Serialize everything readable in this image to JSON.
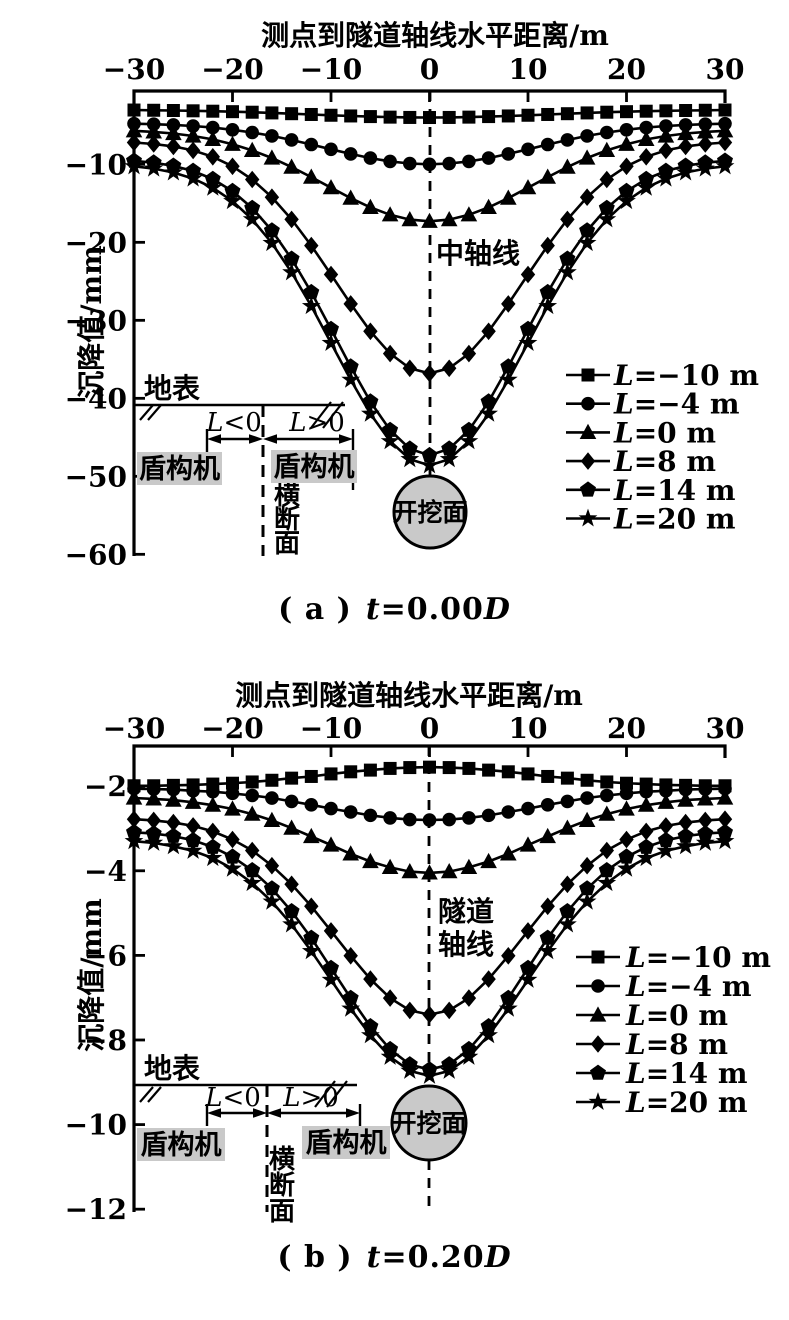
{
  "colors": {
    "ink": "#000000",
    "background": "#ffffff",
    "shade": "#c9c9c9"
  },
  "chart_data": [
    {
      "id": "a",
      "type": "line",
      "title": "测点到隧道轴线水平距离/m",
      "xlabel": "测点到隧道轴线水平距离/m",
      "ylabel": "沉降值/mm",
      "xlim": [
        -30,
        30
      ],
      "ylim": [
        -60,
        0
      ],
      "grid": false,
      "legend_position": "right-middle",
      "xticks": [
        {
          "v": -30,
          "label": "−30"
        },
        {
          "v": -20,
          "label": "−20"
        },
        {
          "v": -10,
          "label": "−10"
        },
        {
          "v": 0,
          "label": "0"
        },
        {
          "v": 10,
          "label": "10"
        },
        {
          "v": 20,
          "label": "20"
        },
        {
          "v": 30,
          "label": "30"
        }
      ],
      "yticks": [
        {
          "v": -10,
          "label": "−10"
        },
        {
          "v": -20,
          "label": "−20"
        },
        {
          "v": -30,
          "label": "−30"
        },
        {
          "v": -40,
          "label": "−40"
        },
        {
          "v": -50,
          "label": "−50"
        },
        {
          "v": -60,
          "label": "−60"
        }
      ],
      "x": [
        -30,
        -28,
        -26,
        -24,
        -22,
        -20,
        -18,
        -16,
        -14,
        -12,
        -10,
        -8,
        -6,
        -4,
        -2,
        0,
        2,
        4,
        6,
        8,
        10,
        12,
        14,
        16,
        18,
        20,
        22,
        24,
        26,
        28,
        30
      ],
      "series": [
        {
          "name": "L=−10 m",
          "marker": "square",
          "values": [
            -3.04,
            -3.07,
            -3.1,
            -3.14,
            -3.19,
            -3.25,
            -3.32,
            -3.41,
            -3.51,
            -3.61,
            -3.71,
            -3.8,
            -3.88,
            -3.95,
            -3.99,
            -4.0,
            -3.99,
            -3.95,
            -3.88,
            -3.8,
            -3.71,
            -3.61,
            -3.51,
            -3.41,
            -3.32,
            -3.25,
            -3.19,
            -3.14,
            -3.1,
            -3.07,
            -3.04
          ]
        },
        {
          "name": "L=−4 m",
          "marker": "circle",
          "values": [
            -4.79,
            -4.85,
            -4.95,
            -5.09,
            -5.29,
            -5.57,
            -5.92,
            -6.36,
            -6.88,
            -7.46,
            -8.07,
            -8.67,
            -9.2,
            -9.63,
            -9.9,
            -10.0,
            -9.9,
            -9.63,
            -9.2,
            -8.67,
            -8.07,
            -7.46,
            -6.88,
            -6.36,
            -5.92,
            -5.57,
            -5.29,
            -5.09,
            -4.95,
            -4.85,
            -4.79
          ]
        },
        {
          "name": "L=0 m",
          "marker": "triangle",
          "values": [
            -5.7,
            -5.84,
            -6.05,
            -6.37,
            -6.81,
            -7.43,
            -8.21,
            -9.19,
            -10.35,
            -11.64,
            -13.0,
            -14.33,
            -15.52,
            -16.47,
            -17.09,
            -17.3,
            -17.09,
            -16.47,
            -15.52,
            -14.33,
            -13.0,
            -11.64,
            -10.35,
            -9.19,
            -8.21,
            -7.43,
            -6.81,
            -6.37,
            -6.05,
            -5.84,
            -5.7
          ]
        },
        {
          "name": "L=8 m",
          "marker": "diamond",
          "values": [
            -7.2,
            -7.39,
            -7.7,
            -8.22,
            -9.04,
            -10.25,
            -11.95,
            -14.21,
            -17.06,
            -20.42,
            -24.12,
            -27.9,
            -31.41,
            -34.27,
            -36.15,
            -36.8,
            -36.15,
            -34.27,
            -31.41,
            -27.9,
            -24.12,
            -20.42,
            -17.06,
            -14.21,
            -11.95,
            -10.25,
            -9.04,
            -8.22,
            -7.7,
            -7.39,
            -7.2
          ]
        },
        {
          "name": "L=14 m",
          "marker": "pentagon",
          "values": [
            -9.56,
            -9.79,
            -10.2,
            -10.86,
            -11.9,
            -13.44,
            -15.61,
            -18.5,
            -22.13,
            -26.41,
            -31.13,
            -35.95,
            -40.43,
            -44.08,
            -46.47,
            -47.3,
            -46.47,
            -44.08,
            -40.43,
            -35.95,
            -31.13,
            -26.41,
            -22.13,
            -18.5,
            -15.61,
            -13.44,
            -11.9,
            -10.86,
            -10.2,
            -9.79,
            -9.56
          ]
        },
        {
          "name": "L=20 m",
          "marker": "star",
          "values": [
            -10.26,
            -10.55,
            -11.05,
            -11.83,
            -13.01,
            -14.72,
            -17.06,
            -20.1,
            -23.85,
            -28.18,
            -32.91,
            -37.63,
            -41.98,
            -45.5,
            -47.8,
            -48.6,
            -47.8,
            -45.5,
            -41.98,
            -37.63,
            -32.91,
            -28.18,
            -23.85,
            -20.1,
            -17.06,
            -14.72,
            -13.01,
            -11.83,
            -11.05,
            -10.55,
            -10.26
          ]
        }
      ],
      "annotations": {
        "axis_line_label_lines": [
          "中轴线"
        ],
        "ground_surface": "地表",
        "l_negative": "L<0",
        "l_positive": "L>0",
        "shield_machine": "盾构机",
        "cross_section_chars": [
          "横",
          "断",
          "面"
        ],
        "excavation_face": "开挖面"
      },
      "caption": {
        "index": "( a )",
        "t_symbol": "t",
        "equals": "=0.00",
        "D_symbol": "D"
      }
    },
    {
      "id": "b",
      "type": "line",
      "title": "测点到隧道轴线水平距离/m",
      "xlabel": "测点到隧道轴线水平距离/m",
      "ylabel": "沉降值/mm",
      "xlim": [
        -30,
        30
      ],
      "ylim": [
        -12,
        0
      ],
      "grid": false,
      "legend_position": "right-middle",
      "xticks": [
        {
          "v": -30,
          "label": "−30"
        },
        {
          "v": -20,
          "label": "−20"
        },
        {
          "v": -10,
          "label": "−10"
        },
        {
          "v": 0,
          "label": "0"
        },
        {
          "v": 10,
          "label": "10"
        },
        {
          "v": 20,
          "label": "20"
        },
        {
          "v": 30,
          "label": "30"
        }
      ],
      "yticks": [
        {
          "v": -2,
          "label": "−2"
        },
        {
          "v": -4,
          "label": "−4"
        },
        {
          "v": -6,
          "label": "−6"
        },
        {
          "v": -8,
          "label": "−8"
        },
        {
          "v": -10,
          "label": "−10"
        },
        {
          "v": -12,
          "label": "−12"
        }
      ],
      "x": [
        -30,
        -28,
        -26,
        -24,
        -22,
        -20,
        -18,
        -16,
        -14,
        -12,
        -10,
        -8,
        -6,
        -4,
        -2,
        0,
        2,
        4,
        6,
        8,
        10,
        12,
        14,
        16,
        18,
        20,
        22,
        24,
        26,
        28,
        30
      ],
      "series": [
        {
          "name": "L=−10 m",
          "marker": "square",
          "values": [
            -1.99,
            -1.99,
            -1.98,
            -1.97,
            -1.95,
            -1.93,
            -1.9,
            -1.86,
            -1.81,
            -1.77,
            -1.71,
            -1.66,
            -1.62,
            -1.58,
            -1.56,
            -1.55,
            -1.56,
            -1.58,
            -1.62,
            -1.66,
            -1.71,
            -1.77,
            -1.81,
            -1.86,
            -1.9,
            -1.93,
            -1.95,
            -1.97,
            -1.98,
            -1.99,
            -1.99
          ]
        },
        {
          "name": "L=−4 m",
          "marker": "circle",
          "values": [
            -2.06,
            -2.07,
            -2.08,
            -2.11,
            -2.13,
            -2.17,
            -2.22,
            -2.28,
            -2.36,
            -2.44,
            -2.53,
            -2.61,
            -2.69,
            -2.75,
            -2.79,
            -2.8,
            -2.79,
            -2.75,
            -2.69,
            -2.61,
            -2.53,
            -2.44,
            -2.36,
            -2.28,
            -2.22,
            -2.17,
            -2.13,
            -2.11,
            -2.08,
            -2.07,
            -2.06
          ]
        },
        {
          "name": "L=0 m",
          "marker": "triangle",
          "values": [
            -2.28,
            -2.3,
            -2.33,
            -2.38,
            -2.45,
            -2.54,
            -2.66,
            -2.81,
            -2.99,
            -3.19,
            -3.39,
            -3.6,
            -3.78,
            -3.92,
            -4.02,
            -4.05,
            -4.02,
            -3.92,
            -3.78,
            -3.6,
            -3.39,
            -3.19,
            -2.99,
            -2.81,
            -2.66,
            -2.54,
            -2.45,
            -2.38,
            -2.33,
            -2.3,
            -2.28
          ]
        },
        {
          "name": "L=8 m",
          "marker": "diamond",
          "values": [
            -2.78,
            -2.81,
            -2.86,
            -2.94,
            -3.07,
            -3.26,
            -3.52,
            -3.88,
            -4.32,
            -4.84,
            -5.42,
            -6.01,
            -6.56,
            -7.01,
            -7.3,
            -7.4,
            -7.3,
            -7.01,
            -6.56,
            -6.01,
            -5.42,
            -4.84,
            -4.32,
            -3.88,
            -3.52,
            -3.26,
            -3.07,
            -2.94,
            -2.86,
            -2.81,
            -2.78
          ]
        },
        {
          "name": "L=14 m",
          "marker": "pentagon",
          "values": [
            -3.09,
            -3.12,
            -3.18,
            -3.28,
            -3.44,
            -3.67,
            -3.99,
            -4.42,
            -4.96,
            -5.59,
            -6.3,
            -7.01,
            -7.68,
            -8.22,
            -8.58,
            -8.7,
            -8.58,
            -8.22,
            -7.68,
            -7.01,
            -6.3,
            -5.59,
            -4.96,
            -4.42,
            -3.99,
            -3.67,
            -3.44,
            -3.28,
            -3.18,
            -3.12,
            -3.09
          ]
        },
        {
          "name": "L=20 m",
          "marker": "star",
          "values": [
            -3.3,
            -3.34,
            -3.42,
            -3.53,
            -3.7,
            -3.95,
            -4.29,
            -4.73,
            -5.27,
            -5.9,
            -6.58,
            -7.26,
            -7.89,
            -8.4,
            -8.73,
            -8.85,
            -8.73,
            -8.4,
            -7.89,
            -7.26,
            -6.58,
            -5.9,
            -5.27,
            -4.73,
            -4.29,
            -3.95,
            -3.7,
            -3.53,
            -3.42,
            -3.34,
            -3.3
          ]
        }
      ],
      "annotations": {
        "axis_line_label_lines": [
          "隧道",
          "轴线"
        ],
        "ground_surface": "地表",
        "l_negative": "L<0",
        "l_positive": "L>0",
        "shield_machine": "盾构机",
        "cross_section_chars": [
          "横",
          "断",
          "面"
        ],
        "excavation_face": "开挖面"
      },
      "caption": {
        "index": "( b )",
        "t_symbol": "t",
        "equals": "=0.20",
        "D_symbol": "D"
      }
    }
  ]
}
